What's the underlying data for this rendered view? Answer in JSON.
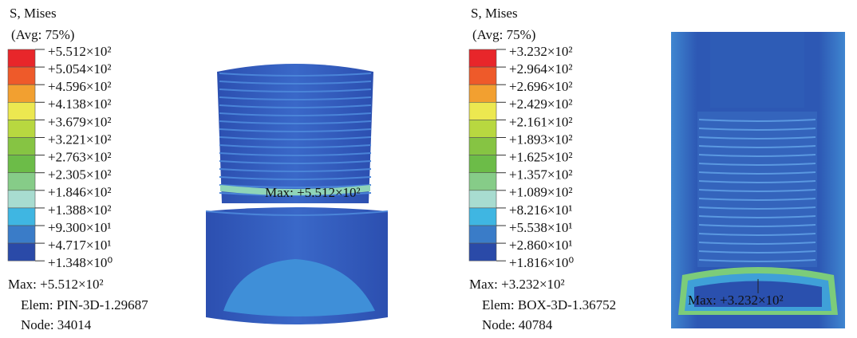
{
  "panels": [
    {
      "title": "S, Mises",
      "subtitle": "(Avg: 75%)",
      "legend": [
        "+5.512×10²",
        "+5.054×10²",
        "+4.596×10²",
        "+4.138×10²",
        "+3.679×10²",
        "+3.221×10²",
        "+2.763×10²",
        "+2.305×10²",
        "+1.846×10²",
        "+1.388×10²",
        "+9.300×10¹",
        "+4.717×10¹",
        "+1.348×10⁰"
      ],
      "colors": [
        "#e8262a",
        "#ee5a2a",
        "#f2a030",
        "#ece850",
        "#b8d840",
        "#86c443",
        "#6cbc48",
        "#86cc88",
        "#a8dcd0",
        "#3fb6e2",
        "#3a7cc8",
        "#2a4aa8"
      ],
      "max": "Max: +5.512×10²",
      "elem": "Elem: PIN-3D-1.29687",
      "node": "Node: 34014",
      "annotation": "Max: +5.512×10²"
    },
    {
      "title": "S, Mises",
      "subtitle": "(Avg: 75%)",
      "legend": [
        "+3.232×10²",
        "+2.964×10²",
        "+2.696×10²",
        "+2.429×10²",
        "+2.161×10²",
        "+1.893×10²",
        "+1.625×10²",
        "+1.357×10²",
        "+1.089×10²",
        "+8.216×10¹",
        "+5.538×10¹",
        "+2.860×10¹",
        "+1.816×10⁰"
      ],
      "colors": [
        "#e8262a",
        "#ee5a2a",
        "#f2a030",
        "#ece850",
        "#b8d840",
        "#86c443",
        "#6cbc48",
        "#86cc88",
        "#a8dcd0",
        "#3fb6e2",
        "#3a7cc8",
        "#2a4aa8"
      ],
      "max": "Max: +3.232×10²",
      "elem": "Elem: BOX-3D-1.36752",
      "node": "Node: 40784",
      "annotation": "Max: +3.232×10²"
    }
  ]
}
